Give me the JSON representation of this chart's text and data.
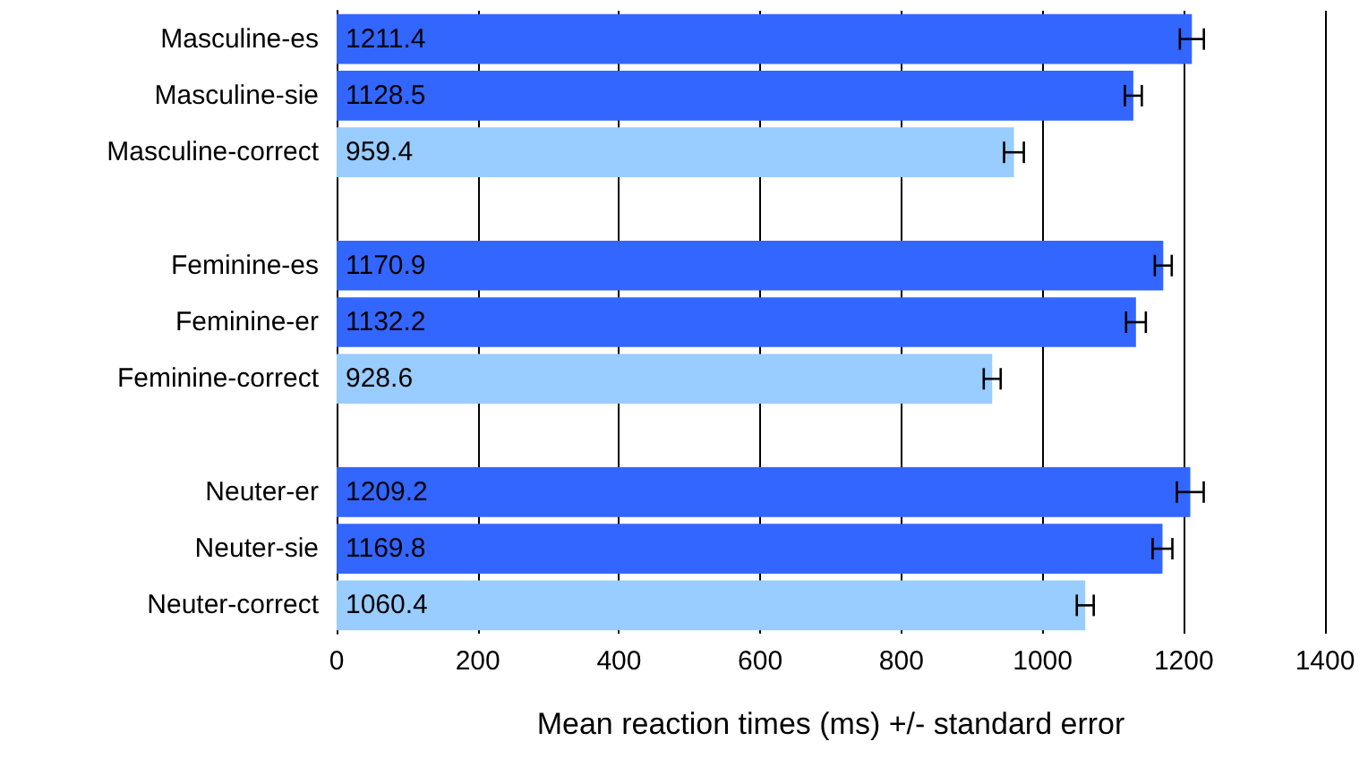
{
  "chart_data": {
    "type": "bar",
    "orientation": "horizontal",
    "xlabel": "Mean reaction times (ms) +/- standard error",
    "categories": [
      "Masculine-es",
      "Masculine-sie",
      "Masculine-correct",
      null,
      "Feminine-es",
      "Feminine-er",
      "Feminine-correct",
      null,
      "Neuter-er",
      "Neuter-sie",
      "Neuter-correct"
    ],
    "values": [
      1211.4,
      1128.5,
      959.4,
      null,
      1170.9,
      1132.2,
      928.6,
      null,
      1209.2,
      1169.8,
      1060.4
    ],
    "colors": [
      "#3366ff",
      "#3366ff",
      "#99ccff",
      null,
      "#3366ff",
      "#3366ff",
      "#99ccff",
      null,
      "#3366ff",
      "#3366ff",
      "#99ccff"
    ],
    "errors": [
      17,
      12,
      14,
      null,
      12,
      14,
      12,
      null,
      19,
      14,
      12
    ],
    "xlim": [
      0,
      1400
    ],
    "xticks": [
      0,
      200,
      400,
      600,
      800,
      1000,
      1200,
      1400
    ],
    "grid": "x",
    "data_labels": true
  }
}
